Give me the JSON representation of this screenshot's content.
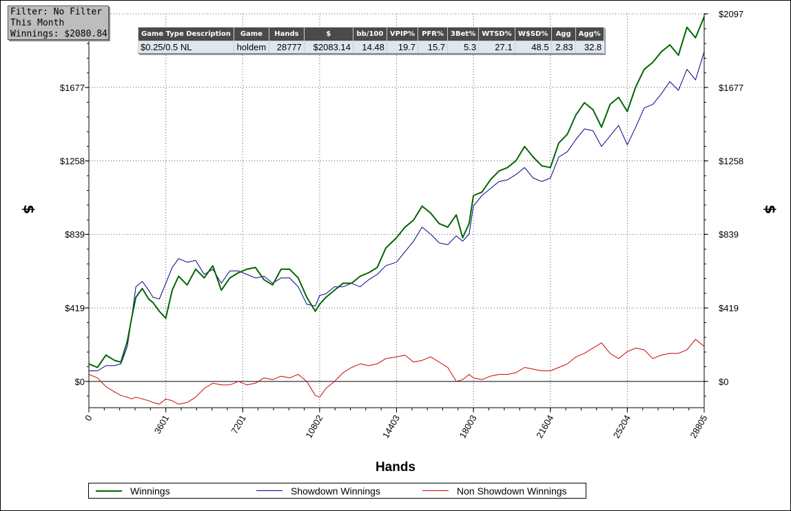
{
  "filter_box": {
    "line1": "Filter: No Filter",
    "line2": "This Month",
    "line3": "Winnings: $2080.84"
  },
  "stats_table": {
    "headers": [
      "Game Type Description",
      "Game",
      "Hands",
      "$",
      "bb/100",
      "VPIP%",
      "PFR%",
      "3Bet%",
      "WTSD%",
      "W$SD%",
      "Agg",
      "Agg%"
    ],
    "row": [
      "$0.25/0.5 NL",
      "holdem",
      "28777",
      "$2083.14",
      "14.48",
      "19.7",
      "15.7",
      "5.3",
      "27.1",
      "48.5",
      "2.83",
      "32.8"
    ]
  },
  "legend": {
    "winnings": "Winnings",
    "showdown": "Showdown Winnings",
    "nonshowdown": "Non Showdown Winnings"
  },
  "colors": {
    "winnings": "#006400",
    "showdown": "#00008b",
    "nonshowdown": "#cc0000"
  },
  "chart_data": {
    "type": "line",
    "xlabel": "Hands",
    "ylabel": "$",
    "xlim": [
      0,
      28805
    ],
    "ylim": [
      -150,
      2097
    ],
    "x_ticks": [
      0,
      3601,
      7201,
      10802,
      14403,
      18003,
      21604,
      25204,
      28805
    ],
    "y_ticks": [
      0,
      419,
      839,
      1258,
      1677,
      2097
    ],
    "x_tick_labels": [
      "0",
      "3601",
      "7201",
      "10802",
      "14403",
      "18003",
      "21604",
      "25204",
      "28805"
    ],
    "y_tick_labels": [
      "$0",
      "$419",
      "$839",
      "$1258",
      "$1677",
      "$2097"
    ],
    "grid": true,
    "legend_position": "bottom",
    "series": [
      {
        "name": "Winnings",
        "x": [
          0,
          400,
          800,
          1200,
          1500,
          1800,
          2000,
          2200,
          2500,
          2800,
          3000,
          3300,
          3600,
          3900,
          4200,
          4600,
          5000,
          5400,
          5800,
          6200,
          6600,
          7000,
          7400,
          7800,
          8200,
          8600,
          9000,
          9400,
          9800,
          10200,
          10600,
          10802,
          11100,
          11500,
          11900,
          12300,
          12700,
          13100,
          13500,
          13900,
          14403,
          14800,
          15200,
          15600,
          16000,
          16400,
          16800,
          17200,
          17500,
          17800,
          18003,
          18400,
          18800,
          19200,
          19600,
          20000,
          20400,
          20800,
          21200,
          21604,
          22000,
          22400,
          22800,
          23200,
          23600,
          24000,
          24400,
          24800,
          25204,
          25600,
          26000,
          26400,
          26800,
          27200,
          27600,
          28000,
          28400,
          28805
        ],
        "values": [
          100,
          80,
          150,
          120,
          110,
          230,
          360,
          480,
          530,
          470,
          450,
          400,
          360,
          520,
          600,
          550,
          640,
          590,
          660,
          520,
          590,
          620,
          640,
          650,
          580,
          550,
          640,
          640,
          590,
          480,
          400,
          440,
          480,
          520,
          560,
          560,
          600,
          620,
          650,
          760,
          820,
          880,
          920,
          1000,
          960,
          900,
          880,
          950,
          820,
          900,
          1060,
          1080,
          1150,
          1200,
          1220,
          1260,
          1340,
          1280,
          1230,
          1220,
          1360,
          1410,
          1520,
          1590,
          1550,
          1450,
          1580,
          1620,
          1540,
          1680,
          1780,
          1820,
          1880,
          1920,
          1860,
          2020,
          1960,
          2080
        ]
      },
      {
        "name": "Showdown Winnings",
        "x": [
          0,
          400,
          800,
          1200,
          1500,
          1800,
          2000,
          2200,
          2500,
          2800,
          3000,
          3300,
          3600,
          3900,
          4200,
          4600,
          5000,
          5400,
          5800,
          6200,
          6600,
          7000,
          7400,
          7800,
          8200,
          8600,
          9000,
          9400,
          9800,
          10200,
          10600,
          10802,
          11100,
          11500,
          11900,
          12300,
          12700,
          13100,
          13500,
          13900,
          14403,
          14800,
          15200,
          15600,
          16000,
          16400,
          16800,
          17200,
          17500,
          17800,
          18003,
          18400,
          18800,
          19200,
          19600,
          20000,
          20400,
          20800,
          21200,
          21604,
          22000,
          22400,
          22800,
          23200,
          23600,
          24000,
          24400,
          24800,
          25204,
          25600,
          26000,
          26400,
          26800,
          27200,
          27600,
          28000,
          28400,
          28805
        ],
        "values": [
          60,
          60,
          90,
          90,
          100,
          200,
          360,
          540,
          570,
          520,
          480,
          470,
          560,
          650,
          700,
          680,
          690,
          610,
          640,
          560,
          630,
          630,
          610,
          590,
          600,
          560,
          590,
          590,
          540,
          440,
          430,
          490,
          500,
          540,
          540,
          560,
          540,
          580,
          610,
          660,
          680,
          740,
          800,
          880,
          840,
          790,
          780,
          830,
          800,
          840,
          1000,
          1060,
          1100,
          1140,
          1150,
          1180,
          1220,
          1160,
          1140,
          1160,
          1280,
          1310,
          1380,
          1440,
          1430,
          1340,
          1400,
          1460,
          1350,
          1450,
          1560,
          1580,
          1640,
          1710,
          1660,
          1780,
          1720,
          1880
        ]
      },
      {
        "name": "Non Showdown Winnings",
        "x": [
          0,
          400,
          800,
          1200,
          1500,
          1800,
          2000,
          2200,
          2500,
          2800,
          3000,
          3300,
          3600,
          3900,
          4200,
          4600,
          5000,
          5400,
          5800,
          6200,
          6600,
          7000,
          7400,
          7800,
          8200,
          8600,
          9000,
          9400,
          9800,
          10200,
          10600,
          10802,
          11100,
          11500,
          11900,
          12300,
          12700,
          13100,
          13500,
          13900,
          14403,
          14800,
          15200,
          15600,
          16000,
          16400,
          16800,
          17200,
          17500,
          17800,
          18003,
          18400,
          18800,
          19200,
          19600,
          20000,
          20400,
          20800,
          21200,
          21604,
          22000,
          22400,
          22800,
          23200,
          23600,
          24000,
          24400,
          24800,
          25204,
          25600,
          26000,
          26400,
          26800,
          27200,
          27600,
          28000,
          28400,
          28805
        ],
        "values": [
          40,
          20,
          -30,
          -60,
          -80,
          -90,
          -100,
          -90,
          -100,
          -110,
          -120,
          -130,
          -100,
          -110,
          -130,
          -120,
          -90,
          -40,
          -10,
          -20,
          -20,
          0,
          -20,
          -10,
          20,
          10,
          30,
          20,
          40,
          0,
          -80,
          -90,
          -40,
          0,
          50,
          80,
          100,
          90,
          100,
          130,
          140,
          150,
          110,
          120,
          140,
          110,
          80,
          0,
          10,
          40,
          20,
          10,
          30,
          40,
          40,
          50,
          80,
          70,
          60,
          60,
          80,
          100,
          140,
          160,
          190,
          220,
          160,
          130,
          170,
          190,
          180,
          130,
          150,
          160,
          160,
          180,
          240,
          200
        ]
      }
    ]
  }
}
